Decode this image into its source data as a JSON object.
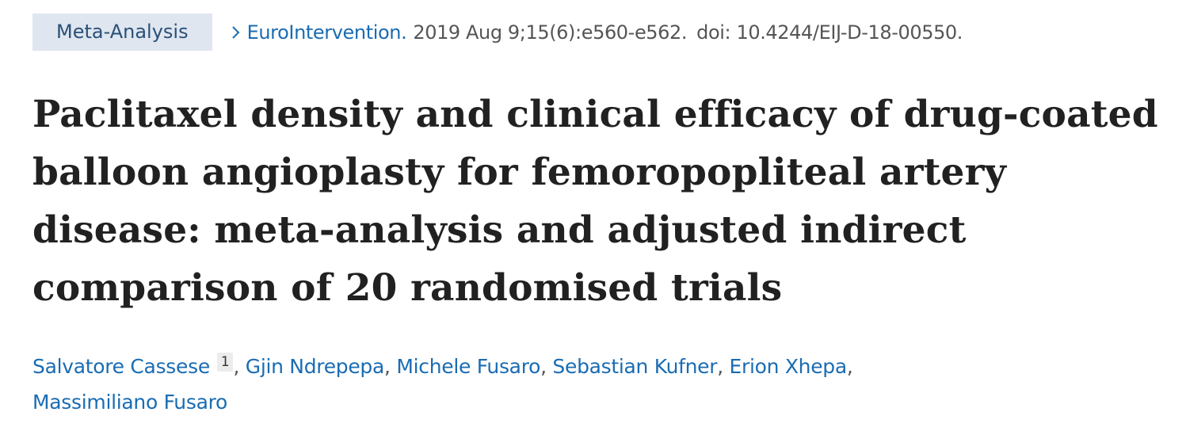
{
  "article_type": "Meta-Analysis",
  "citation": {
    "journal": "EuroIntervention.",
    "date": "2019 Aug 9;15(6):e560-e562.",
    "doi": "doi: 10.4244/EIJ-D-18-00550."
  },
  "title_lines": [
    "Paclitaxel density and clinical efficacy of drug-coated",
    "balloon angioplasty for femoropopliteal artery",
    "disease: meta-analysis and adjusted indirect",
    "comparison of 20 randomised trials"
  ],
  "authors": [
    {
      "name": "Salvatore Cassese",
      "affiliation": "1"
    },
    {
      "name": "Gjin Ndrepepa"
    },
    {
      "name": "Michele Fusaro"
    },
    {
      "name": "Sebastian Kufner"
    },
    {
      "name": "Erion Xhepa"
    },
    {
      "name": "Massimiliano Fusaro"
    }
  ],
  "icons": {
    "journal_chevron": "chevron-right-icon"
  },
  "colors": {
    "link": "#1a6cb3",
    "badge_bg": "#dfe6ef",
    "badge_text": "#2a5078",
    "title": "#212121",
    "muted": "#555555"
  }
}
